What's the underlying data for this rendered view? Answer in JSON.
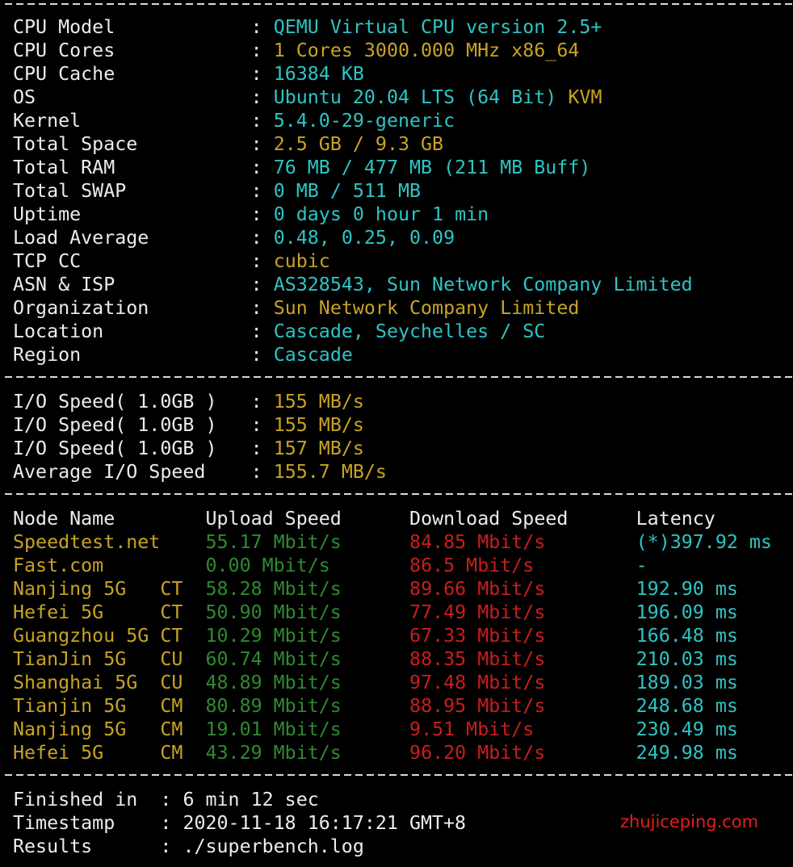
{
  "separator": ":",
  "system": [
    {
      "label": "CPU Model",
      "value": "QEMU Virtual CPU version 2.5+",
      "color": "#2ec4c4"
    },
    {
      "label": "CPU Cores",
      "value": "1 Cores 3000.000 MHz x86_64",
      "color": "#c8a323"
    },
    {
      "label": "CPU Cache",
      "value": "16384 KB",
      "color": "#2ec4c4"
    },
    {
      "label": "OS",
      "value": "Ubuntu 20.04 LTS (64 Bit)",
      "color": "#2ec4c4",
      "extra": "KVM",
      "extra_color": "#c8a323"
    },
    {
      "label": "Kernel",
      "value": "5.4.0-29-generic",
      "color": "#2ec4c4"
    },
    {
      "label": "Total Space",
      "value": "2.5 GB / 9.3 GB",
      "color": "#c8a323"
    },
    {
      "label": "Total RAM",
      "value": "76 MB / 477 MB (211 MB Buff)",
      "color": "#2ec4c4"
    },
    {
      "label": "Total SWAP",
      "value": "0 MB / 511 MB",
      "color": "#2ec4c4"
    },
    {
      "label": "Uptime",
      "value": "0 days 0 hour 1 min",
      "color": "#2ec4c4"
    },
    {
      "label": "Load Average",
      "value": "0.48, 0.25, 0.09",
      "color": "#2ec4c4"
    },
    {
      "label": "TCP CC",
      "value": "cubic",
      "color": "#c8a323"
    },
    {
      "label": "ASN & ISP",
      "value": "AS328543, Sun Network Company Limited",
      "color": "#2ec4c4"
    },
    {
      "label": "Organization",
      "value": "Sun Network Company Limited",
      "color": "#c8a323"
    },
    {
      "label": "Location",
      "value": "Cascade, Seychelles / SC",
      "color": "#2ec4c4"
    },
    {
      "label": "Region",
      "value": "Cascade",
      "color": "#2ec4c4"
    }
  ],
  "io": [
    {
      "label": "I/O Speed( 1.0GB )",
      "value": "155 MB/s"
    },
    {
      "label": "I/O Speed( 1.0GB )",
      "value": "155 MB/s"
    },
    {
      "label": "I/O Speed( 1.0GB )",
      "value": "157 MB/s"
    },
    {
      "label": "Average I/O Speed",
      "value": "155.7 MB/s"
    }
  ],
  "speed": {
    "headers": [
      "Node Name",
      "Upload Speed",
      "Download Speed",
      "Latency"
    ],
    "rows": [
      [
        "Speedtest.net",
        "55.17 Mbit/s",
        "84.85 Mbit/s",
        "(*)397.92 ms"
      ],
      [
        "Fast.com",
        "0.00 Mbit/s",
        "86.5 Mbit/s",
        "-"
      ],
      [
        "Nanjing 5G   CT",
        "58.28 Mbit/s",
        "89.66 Mbit/s",
        "192.90 ms"
      ],
      [
        "Hefei 5G     CT",
        "50.90 Mbit/s",
        "77.49 Mbit/s",
        "196.09 ms"
      ],
      [
        "Guangzhou 5G CT",
        "10.29 Mbit/s",
        "67.33 Mbit/s",
        "166.48 ms"
      ],
      [
        "TianJin 5G   CU",
        "60.74 Mbit/s",
        "88.35 Mbit/s",
        "210.03 ms"
      ],
      [
        "Shanghai 5G  CU",
        "48.89 Mbit/s",
        "97.48 Mbit/s",
        "189.03 ms"
      ],
      [
        "Tianjin 5G   CM",
        "80.89 Mbit/s",
        "88.95 Mbit/s",
        "248.68 ms"
      ],
      [
        "Nanjing 5G   CM",
        "19.01 Mbit/s",
        "9.51 Mbit/s",
        "230.49 ms"
      ],
      [
        "Hefei 5G     CM",
        "43.29 Mbit/s",
        "96.20 Mbit/s",
        "249.98 ms"
      ]
    ]
  },
  "footer": [
    {
      "label": "Finished in",
      "value": "6 min 12 sec"
    },
    {
      "label": "Timestamp",
      "value": "2020-11-18 16:17:21 GMT+8"
    },
    {
      "label": "Results",
      "value": "./superbench.log"
    }
  ],
  "watermark": "zhujiceping.com"
}
